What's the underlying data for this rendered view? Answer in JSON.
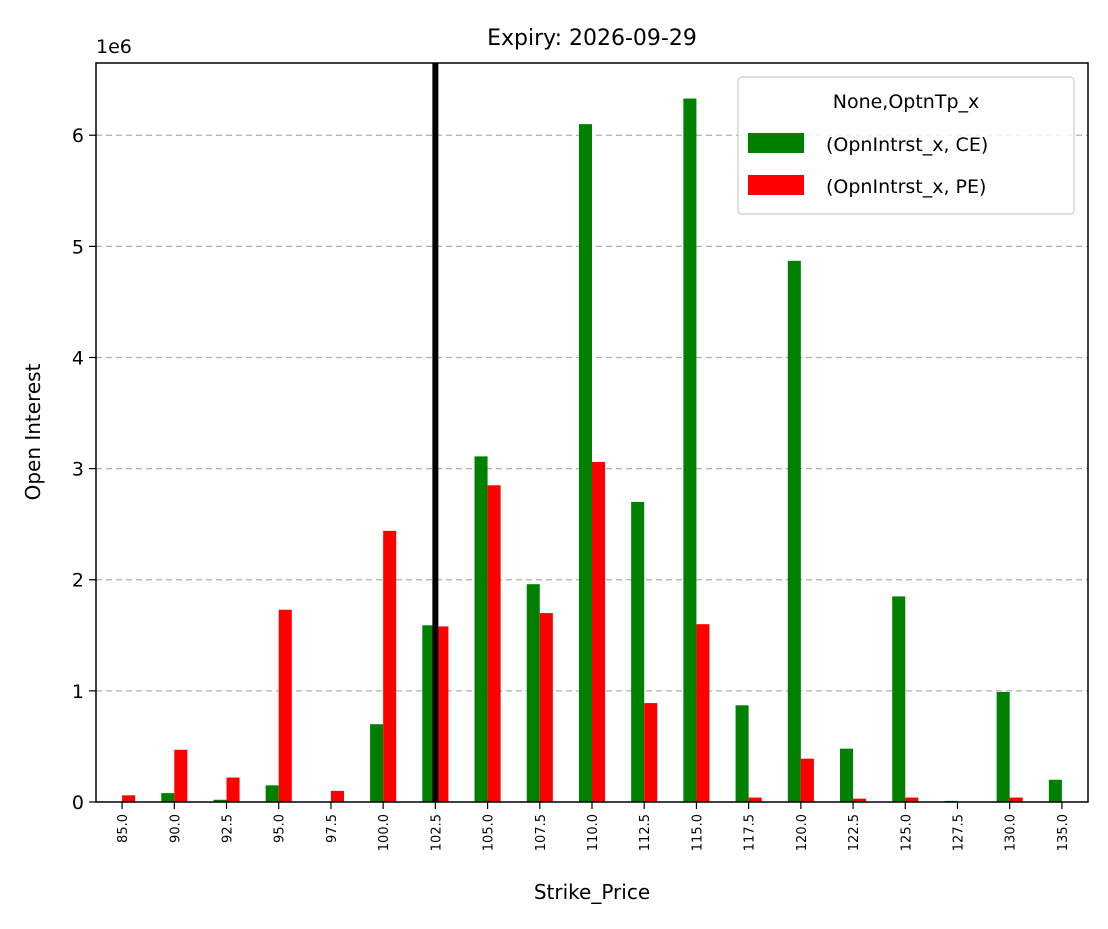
{
  "chart_data": {
    "type": "bar",
    "title": "Expiry: 2026-09-29",
    "xlabel": "Strike_Price",
    "ylabel": "Open Interest",
    "y_scale_label": "1e6",
    "ylim": [
      0,
      6.65
    ],
    "y_ticks": [
      0,
      1,
      2,
      3,
      4,
      5,
      6
    ],
    "y_tick_labels": [
      "0",
      "1",
      "2",
      "3",
      "4",
      "5",
      "6"
    ],
    "grid": "y, dashed",
    "categories": [
      "85.0",
      "90.0",
      "92.5",
      "95.0",
      "97.5",
      "100.0",
      "102.5",
      "105.0",
      "107.5",
      "110.0",
      "112.5",
      "115.0",
      "117.5",
      "120.0",
      "122.5",
      "125.0",
      "127.5",
      "130.0",
      "135.0"
    ],
    "series": [
      {
        "name": "(OpnIntrst_x, CE)",
        "color": "#008000",
        "values": [
          0.0,
          0.08,
          0.02,
          0.15,
          0.0,
          0.7,
          1.59,
          3.11,
          1.96,
          6.1,
          2.7,
          6.33,
          0.87,
          4.87,
          0.48,
          1.85,
          0.01,
          0.99,
          0.2
        ]
      },
      {
        "name": "(OpnIntrst_x, PE)",
        "color": "#ff0000",
        "values": [
          0.06,
          0.47,
          0.22,
          1.73,
          0.1,
          2.44,
          1.58,
          2.85,
          1.7,
          3.06,
          0.89,
          1.6,
          0.04,
          0.39,
          0.03,
          0.04,
          0.0,
          0.04,
          0.0
        ]
      }
    ],
    "vertical_line": {
      "x_category": "102.5",
      "color": "#000000"
    },
    "legend": {
      "title": "None,OptnTp_x",
      "placement": "top-right"
    }
  }
}
